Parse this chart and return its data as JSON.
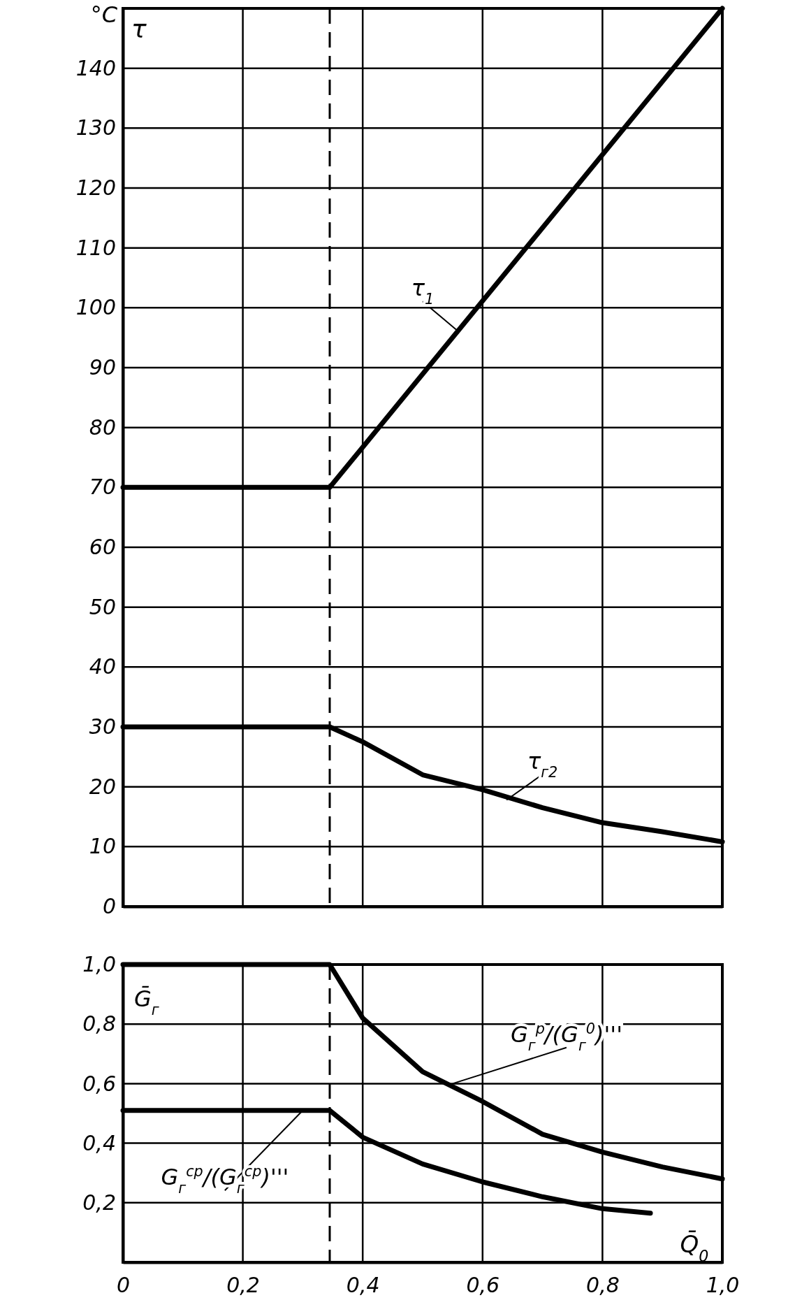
{
  "chart_data": [
    {
      "type": "line",
      "ylabel": "°C",
      "annotations": [
        "τ"
      ],
      "xlim": [
        0,
        1.0
      ],
      "xticks": [
        0,
        0.2,
        0.4,
        0.6,
        0.8,
        1.0
      ],
      "ylim": [
        0,
        150
      ],
      "yticks": [
        0,
        10,
        20,
        30,
        40,
        50,
        60,
        70,
        80,
        90,
        100,
        110,
        120,
        130,
        140
      ],
      "grid": true,
      "tick_labels": "y",
      "line_style": "solid",
      "marker": "none",
      "ref_lines": [
        {
          "axis": "x",
          "value": 0.345,
          "line_style": "dashed"
        }
      ],
      "series": [
        {
          "name": "τ$_{1}$",
          "color": "#000000",
          "x": [
            0,
            0.345,
            1.0
          ],
          "values": [
            70,
            70,
            150
          ]
        },
        {
          "name": "τ$_{г2}$",
          "color": "#000000",
          "x": [
            0,
            0.345,
            0.4,
            0.5,
            0.6,
            0.7,
            0.8,
            0.9,
            1.0
          ],
          "values": [
            30,
            30,
            27.5,
            22,
            19.5,
            16.5,
            14,
            12.5,
            10.8
          ]
        }
      ]
    },
    {
      "type": "line",
      "ylabel": "Ḡ$_{г}$",
      "xlabel": "Q̄$_{0}$",
      "xlim": [
        0,
        1.0
      ],
      "xticks": [
        {
          "value": 0,
          "label": "0"
        },
        {
          "value": 0.2,
          "label": "0,2"
        },
        {
          "value": 0.4,
          "label": "0,4"
        },
        {
          "value": 0.6,
          "label": "0,6"
        },
        {
          "value": 0.8,
          "label": "0,8"
        },
        {
          "value": 1.0,
          "label": "1,0"
        }
      ],
      "ylim": [
        0,
        1.0
      ],
      "yticks": [
        {
          "value": 0.2,
          "label": "0,2"
        },
        {
          "value": 0.4,
          "label": "0,4"
        },
        {
          "value": 0.6,
          "label": "0,6"
        },
        {
          "value": 0.8,
          "label": "0,8"
        },
        {
          "value": 1.0,
          "label": "1,0"
        }
      ],
      "grid": true,
      "line_style": "solid",
      "marker": "none",
      "ref_lines": [
        {
          "axis": "x",
          "value": 0.345,
          "line_style": "dashed"
        }
      ],
      "series": [
        {
          "name": "G$_{г}$$^{р}$/(G$_{г}$$^{0}$)'''",
          "color": "#000000",
          "x": [
            0,
            0.345,
            0.4,
            0.5,
            0.6,
            0.7,
            0.8,
            0.9,
            1.0
          ],
          "values": [
            1.0,
            1.0,
            0.82,
            0.64,
            0.54,
            0.43,
            0.37,
            0.32,
            0.28
          ]
        },
        {
          "name": "G$_{г}$$^{ср}$/(G$_{г}$$^{ср}$)'''",
          "color": "#000000",
          "x": [
            0,
            0.345,
            0.4,
            0.5,
            0.6,
            0.7,
            0.8,
            0.88
          ],
          "values": [
            0.51,
            0.51,
            0.42,
            0.33,
            0.27,
            0.22,
            0.18,
            0.165
          ]
        }
      ]
    }
  ]
}
